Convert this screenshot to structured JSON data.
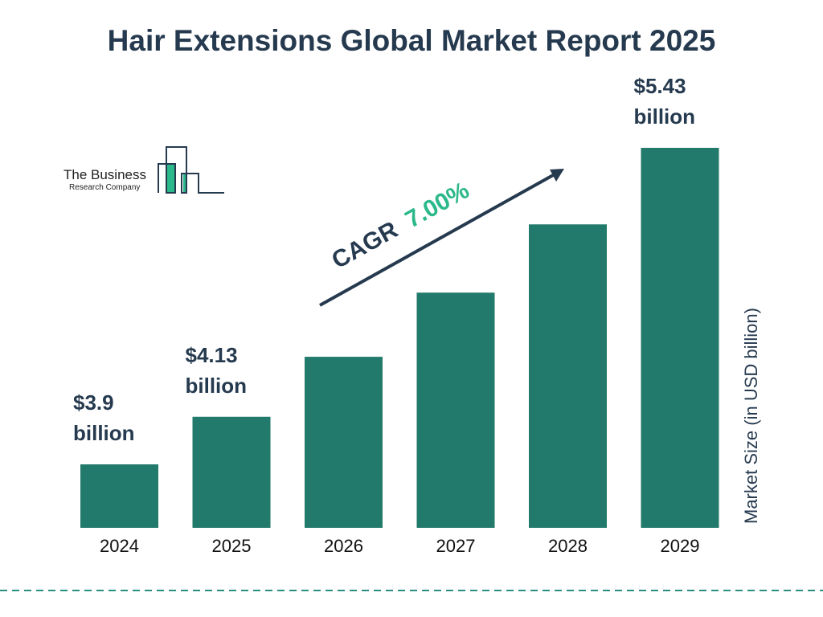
{
  "colors": {
    "bar": "#217a6b",
    "title": "#263a4f",
    "cagr_value": "#2bb88a",
    "divider": "#2a8f80"
  },
  "logo": {
    "line1": "The Business",
    "line2": "Research Company"
  },
  "cagr": {
    "label": "CAGR",
    "value": "7.00%"
  },
  "chart_data": {
    "type": "bar",
    "title": "Hair Extensions Global Market Report 2025",
    "ylabel": "Market Size (in USD billion)",
    "xlabel": "",
    "categories": [
      "2024",
      "2025",
      "2026",
      "2027",
      "2028",
      "2029"
    ],
    "values": [
      3.9,
      4.13,
      4.42,
      4.73,
      5.06,
      5.43
    ],
    "data_labels": [
      {
        "index": 0,
        "line1": "$3.9",
        "line2": "billion"
      },
      {
        "index": 1,
        "line1": "$4.13",
        "line2": "billion"
      },
      {
        "index": 5,
        "line1": "$5.43",
        "line2": "billion"
      }
    ],
    "grid": false,
    "legend": "none"
  }
}
